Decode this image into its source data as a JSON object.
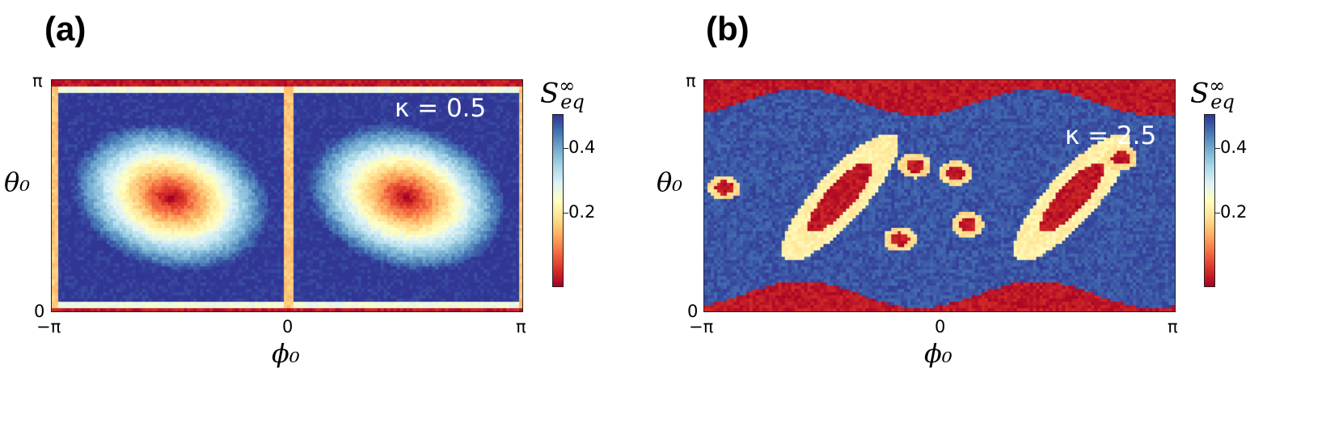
{
  "chart_data": [
    {
      "type": "heatmap",
      "panel_label": "(a)",
      "annotation": "κ = 0.5",
      "xlabel": "ϕ₀",
      "ylabel": "θ₀",
      "xticks": [
        "−π",
        "0",
        "π"
      ],
      "yticks": [
        "0",
        "π"
      ],
      "xlim": [
        -3.1416,
        3.1416
      ],
      "ylim": [
        0,
        3.1416
      ],
      "colorbar": {
        "label": "S∞eq",
        "ticks": [
          "0.2",
          "0.4"
        ],
        "range": [
          0.0,
          0.5
        ],
        "colormap": "RdYlBu"
      },
      "features": "two elliptical low-value (red) regions centered near ϕ₀ = ±π/2, θ₀ = π/2 surrounded by high values (blue); red bands at θ₀ = 0 and θ₀ = π"
    },
    {
      "type": "heatmap",
      "panel_label": "(b)",
      "annotation": "κ = 2.5",
      "xlabel": "ϕ₀",
      "ylabel": "θ₀",
      "xticks": [
        "−π",
        "0",
        "π"
      ],
      "yticks": [
        "0",
        "π"
      ],
      "xlim": [
        -3.1416,
        3.1416
      ],
      "ylim": [
        0,
        3.1416
      ],
      "colorbar": {
        "label": "S∞eq",
        "ticks": [
          "0.2",
          "0.4"
        ],
        "range": [
          0.0,
          0.5
        ],
        "colormap": "RdYlBu"
      },
      "features": "mostly high-value (blue) background with diagonal low-value (red/yellow) islands and wavy red bands near θ₀ = 0 and θ₀ = π"
    }
  ],
  "colors": {
    "low": "#a50026",
    "mid": "#ffffbf",
    "high": "#313695"
  }
}
